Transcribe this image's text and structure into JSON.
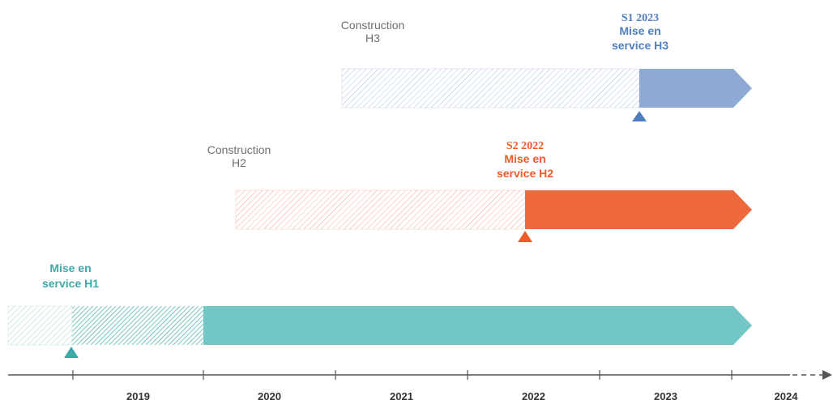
{
  "phases": [
    {
      "construction": [
        "Construction",
        "H3"
      ],
      "milestone": [
        "S1 2023",
        "Mise en",
        "service H3"
      ]
    },
    {
      "construction": [
        "Construction",
        "H2"
      ],
      "milestone": [
        "S2 2022",
        "Mise en",
        "service H2"
      ]
    },
    {
      "milestone": [
        "Mise en",
        "service H1"
      ]
    }
  ],
  "axis": {
    "years": [
      "2019",
      "2020",
      "2021",
      "2022",
      "2023",
      "2024"
    ]
  }
}
